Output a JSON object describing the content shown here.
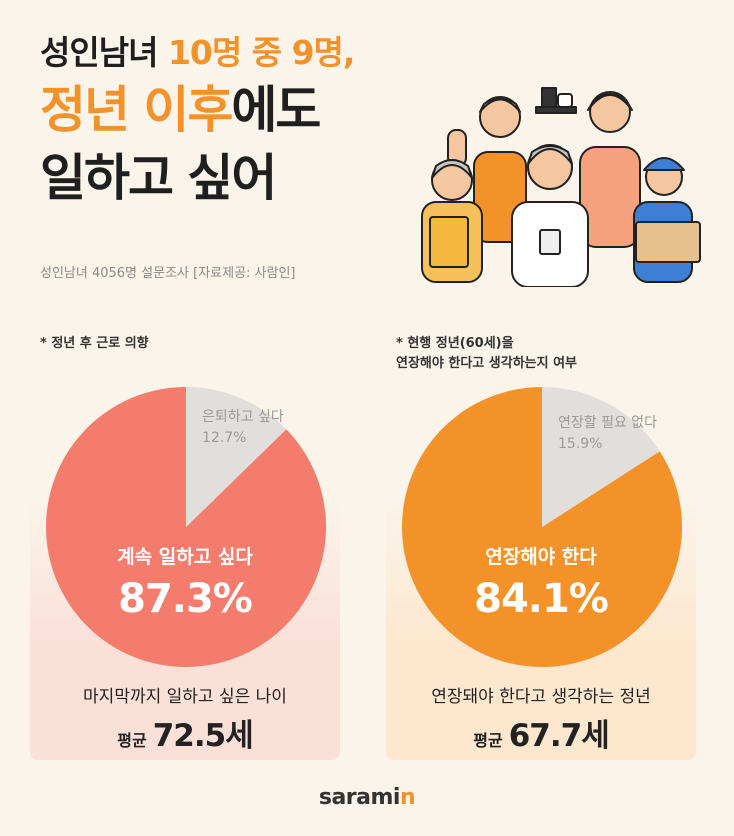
{
  "title": {
    "line1_a": "성인남녀",
    "line1_b": "10명 중 9명,",
    "line2_a": "정년 이후",
    "line2_b": "에도",
    "line3": "일하고 싶어"
  },
  "survey_note": "성인남녀 4056명 설문조사  [자료제공: 사람인]",
  "logo": {
    "text": "saramin",
    "main": "sarami",
    "accent": "n"
  },
  "colors": {
    "accent_orange": "#f4922a",
    "pie_left": "#f47c6c",
    "pie_right": "#f4922a",
    "pie_minor": "#e2dedb",
    "background": "#fbf4ea"
  },
  "chart_data": [
    {
      "type": "pie",
      "title": "* 정년 후 근로 의향",
      "slices": [
        {
          "label": "계속 일하고 싶다",
          "value": 87.3,
          "display": "87.3%"
        },
        {
          "label": "은퇴하고 싶다",
          "value": 12.7,
          "display": "12.7%"
        }
      ],
      "age_label": "마지막까지 일하고 싶은 나이",
      "avg_label": "평균",
      "avg_value": "72.5세"
    },
    {
      "type": "pie",
      "title_lines": [
        "* 현행 정년(60세)을",
        "연장해야 한다고 생각하는지 여부"
      ],
      "slices": [
        {
          "label": "연장해야 한다",
          "value": 84.1,
          "display": "84.1%"
        },
        {
          "label": "연장할 필요 없다",
          "value": 15.9,
          "display": "15.9%"
        }
      ],
      "age_label": "연장돼야 한다고 생각하는 정년",
      "avg_label": "평균",
      "avg_value": "67.7세"
    }
  ]
}
